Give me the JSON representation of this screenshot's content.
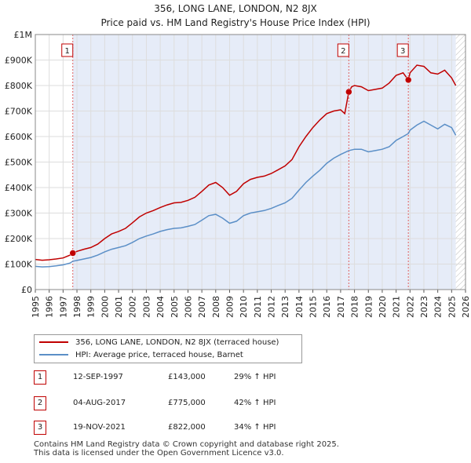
{
  "chart_data": {
    "type": "line",
    "title": "356, LONG LANE, LONDON, N2 8JX",
    "subtitle": "Price paid vs. HM Land Registry's House Price Index (HPI)",
    "x_range": [
      1995,
      2026
    ],
    "ylim": [
      0,
      1000000
    ],
    "y_ticks": [
      0,
      100000,
      200000,
      300000,
      400000,
      500000,
      600000,
      700000,
      800000,
      900000,
      1000000
    ],
    "y_tick_labels": [
      "£0",
      "£100K",
      "£200K",
      "£300K",
      "£400K",
      "£500K",
      "£600K",
      "£700K",
      "£800K",
      "£900K",
      "£1M"
    ],
    "x_ticks": [
      1995,
      1996,
      1997,
      1998,
      1999,
      2000,
      2001,
      2002,
      2003,
      2004,
      2005,
      2006,
      2007,
      2008,
      2009,
      2010,
      2011,
      2012,
      2013,
      2014,
      2015,
      2016,
      2017,
      2018,
      2019,
      2020,
      2021,
      2022,
      2023,
      2024,
      2025,
      2026
    ],
    "series": [
      {
        "name": "356, LONG LANE, LONDON, N2 8JX (terraced house)",
        "color": "#c00000",
        "points": [
          [
            1995.0,
            118000
          ],
          [
            1995.5,
            115000
          ],
          [
            1996.0,
            117000
          ],
          [
            1996.5,
            120000
          ],
          [
            1997.0,
            124000
          ],
          [
            1997.5,
            135000
          ],
          [
            1997.7,
            143000
          ],
          [
            1998.0,
            150000
          ],
          [
            1998.5,
            158000
          ],
          [
            1999.0,
            165000
          ],
          [
            1999.5,
            178000
          ],
          [
            2000.0,
            200000
          ],
          [
            2000.5,
            218000
          ],
          [
            2001.0,
            228000
          ],
          [
            2001.5,
            240000
          ],
          [
            2002.0,
            262000
          ],
          [
            2002.5,
            285000
          ],
          [
            2003.0,
            300000
          ],
          [
            2003.5,
            310000
          ],
          [
            2004.0,
            322000
          ],
          [
            2004.5,
            332000
          ],
          [
            2005.0,
            340000
          ],
          [
            2005.5,
            342000
          ],
          [
            2006.0,
            350000
          ],
          [
            2006.5,
            362000
          ],
          [
            2007.0,
            385000
          ],
          [
            2007.5,
            410000
          ],
          [
            2008.0,
            420000
          ],
          [
            2008.5,
            400000
          ],
          [
            2009.0,
            370000
          ],
          [
            2009.5,
            385000
          ],
          [
            2010.0,
            415000
          ],
          [
            2010.5,
            432000
          ],
          [
            2011.0,
            440000
          ],
          [
            2011.5,
            445000
          ],
          [
            2012.0,
            455000
          ],
          [
            2012.5,
            470000
          ],
          [
            2013.0,
            485000
          ],
          [
            2013.5,
            510000
          ],
          [
            2014.0,
            560000
          ],
          [
            2014.5,
            600000
          ],
          [
            2015.0,
            635000
          ],
          [
            2015.5,
            665000
          ],
          [
            2016.0,
            690000
          ],
          [
            2016.5,
            700000
          ],
          [
            2017.0,
            705000
          ],
          [
            2017.3,
            690000
          ],
          [
            2017.59,
            775000
          ],
          [
            2017.8,
            795000
          ],
          [
            2018.0,
            800000
          ],
          [
            2018.5,
            795000
          ],
          [
            2019.0,
            780000
          ],
          [
            2019.5,
            785000
          ],
          [
            2020.0,
            790000
          ],
          [
            2020.5,
            810000
          ],
          [
            2021.0,
            840000
          ],
          [
            2021.5,
            850000
          ],
          [
            2021.88,
            822000
          ],
          [
            2022.0,
            850000
          ],
          [
            2022.5,
            880000
          ],
          [
            2023.0,
            875000
          ],
          [
            2023.5,
            850000
          ],
          [
            2024.0,
            845000
          ],
          [
            2024.5,
            860000
          ],
          [
            2025.0,
            830000
          ],
          [
            2025.3,
            800000
          ]
        ]
      },
      {
        "name": "HPI: Average price, terraced house, Barnet",
        "color": "#5b8fc7",
        "points": [
          [
            1995.0,
            91000
          ],
          [
            1995.5,
            89000
          ],
          [
            1996.0,
            90000
          ],
          [
            1996.5,
            93000
          ],
          [
            1997.0,
            97000
          ],
          [
            1997.5,
            104000
          ],
          [
            1997.7,
            111000
          ],
          [
            1998.0,
            114000
          ],
          [
            1998.5,
            120000
          ],
          [
            1999.0,
            126000
          ],
          [
            1999.5,
            135000
          ],
          [
            2000.0,
            148000
          ],
          [
            2000.5,
            158000
          ],
          [
            2001.0,
            165000
          ],
          [
            2001.5,
            172000
          ],
          [
            2002.0,
            185000
          ],
          [
            2002.5,
            200000
          ],
          [
            2003.0,
            210000
          ],
          [
            2003.5,
            218000
          ],
          [
            2004.0,
            228000
          ],
          [
            2004.5,
            235000
          ],
          [
            2005.0,
            240000
          ],
          [
            2005.5,
            242000
          ],
          [
            2006.0,
            248000
          ],
          [
            2006.5,
            255000
          ],
          [
            2007.0,
            272000
          ],
          [
            2007.5,
            290000
          ],
          [
            2008.0,
            295000
          ],
          [
            2008.5,
            280000
          ],
          [
            2009.0,
            260000
          ],
          [
            2009.5,
            268000
          ],
          [
            2010.0,
            290000
          ],
          [
            2010.5,
            300000
          ],
          [
            2011.0,
            305000
          ],
          [
            2011.5,
            310000
          ],
          [
            2012.0,
            318000
          ],
          [
            2012.5,
            330000
          ],
          [
            2013.0,
            340000
          ],
          [
            2013.5,
            358000
          ],
          [
            2014.0,
            390000
          ],
          [
            2014.5,
            420000
          ],
          [
            2015.0,
            445000
          ],
          [
            2015.5,
            468000
          ],
          [
            2016.0,
            495000
          ],
          [
            2016.5,
            515000
          ],
          [
            2017.0,
            530000
          ],
          [
            2017.59,
            545000
          ],
          [
            2018.0,
            550000
          ],
          [
            2018.5,
            550000
          ],
          [
            2019.0,
            540000
          ],
          [
            2019.5,
            545000
          ],
          [
            2020.0,
            550000
          ],
          [
            2020.5,
            560000
          ],
          [
            2021.0,
            585000
          ],
          [
            2021.5,
            600000
          ],
          [
            2021.88,
            612000
          ],
          [
            2022.0,
            625000
          ],
          [
            2022.5,
            645000
          ],
          [
            2023.0,
            660000
          ],
          [
            2023.5,
            645000
          ],
          [
            2024.0,
            630000
          ],
          [
            2024.5,
            648000
          ],
          [
            2025.0,
            635000
          ],
          [
            2025.3,
            605000
          ]
        ]
      }
    ],
    "sales": [
      {
        "id": "1",
        "x": 1997.7,
        "value": 143000,
        "date": "12-SEP-1997",
        "price": "£143,000",
        "hpi": "29% ↑ HPI"
      },
      {
        "id": "2",
        "x": 2017.59,
        "value": 775000,
        "date": "04-AUG-2017",
        "price": "£775,000",
        "hpi": "42% ↑ HPI"
      },
      {
        "id": "3",
        "x": 2021.88,
        "value": 822000,
        "date": "19-NOV-2021",
        "price": "£822,000",
        "hpi": "34% ↑ HPI"
      }
    ],
    "hatch_from": 2025.3
  },
  "footer": {
    "line1": "Contains HM Land Registry data © Crown copyright and database right 2025.",
    "line2": "This data is licensed under the Open Government Licence v3.0."
  }
}
